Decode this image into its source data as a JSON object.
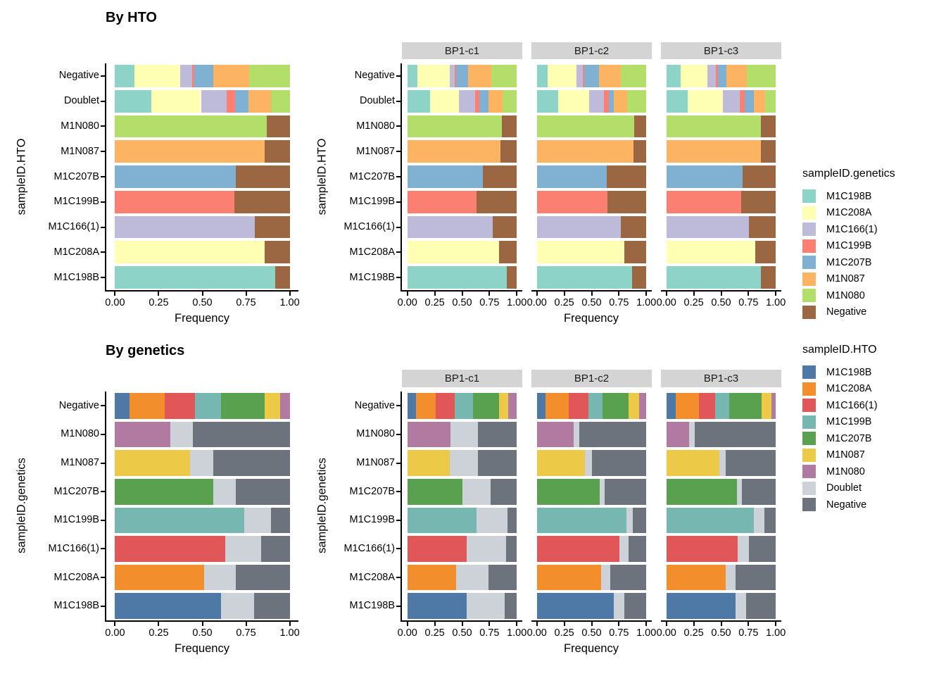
{
  "titles": {
    "top": "By HTO",
    "bottom": "By genetics"
  },
  "axis": {
    "x_label": "Frequency",
    "x_ticks": [
      "0.00",
      "0.25",
      "0.50",
      "0.75",
      "1.00"
    ],
    "y_label_top": "sampleID.HTO",
    "y_label_bottom": "sampleID.genetics"
  },
  "facet_labels": [
    "BP1-c1",
    "BP1-c2",
    "BP1-c3"
  ],
  "legends": [
    {
      "title": "sampleID.genetics",
      "items": [
        {
          "label": "M1C198B",
          "color": "#8dd3c7"
        },
        {
          "label": "M1C208A",
          "color": "#ffffb3"
        },
        {
          "label": "M1C166(1)",
          "color": "#bebada"
        },
        {
          "label": "M1C199B",
          "color": "#fb8072"
        },
        {
          "label": "M1C207B",
          "color": "#80b1d3"
        },
        {
          "label": "M1N087",
          "color": "#fdb462"
        },
        {
          "label": "M1N080",
          "color": "#b3de69"
        },
        {
          "label": "Negative",
          "color": "#9a6742"
        }
      ]
    },
    {
      "title": "sampleID.HTO",
      "items": [
        {
          "label": "M1C198B",
          "color": "#4e79a7"
        },
        {
          "label": "M1C208A",
          "color": "#f28e2b"
        },
        {
          "label": "M1C166(1)",
          "color": "#e15759"
        },
        {
          "label": "M1C199B",
          "color": "#76b7b2"
        },
        {
          "label": "M1C207B",
          "color": "#59a14f"
        },
        {
          "label": "M1N087",
          "color": "#edc948"
        },
        {
          "label": "M1N080",
          "color": "#b07aa1"
        },
        {
          "label": "Doublet",
          "color": "#cdd2d9"
        },
        {
          "label": "Negative",
          "color": "#6d737c"
        }
      ]
    }
  ],
  "chart_data": [
    {
      "id": "by_hto_overall",
      "type": "bar",
      "stacked": true,
      "orientation": "horizontal",
      "title": "By HTO",
      "xlabel": "Frequency",
      "ylabel": "sampleID.HTO",
      "xlim": [
        0,
        1
      ],
      "x_ticks": [
        "0.00",
        "0.25",
        "0.50",
        "0.75",
        "1.00"
      ],
      "legend_title": "sampleID.genetics",
      "stack_series": [
        "M1C198B",
        "M1C208A",
        "M1C166(1)",
        "M1C199B",
        "M1C207B",
        "M1N087",
        "M1N080",
        "Negative"
      ],
      "stack_colors": [
        "#8dd3c7",
        "#ffffb3",
        "#bebada",
        "#fb8072",
        "#80b1d3",
        "#fdb462",
        "#b3de69",
        "#9a6742"
      ],
      "categories": [
        "Negative",
        "Doublet",
        "M1N080",
        "M1N087",
        "M1C207B",
        "M1C199B",
        "M1C166(1)",
        "M1C208A",
        "M1C198B"
      ],
      "rows": [
        [
          0.112,
          0.262,
          0.066,
          0.015,
          0.108,
          0.206,
          0.231,
          0
        ],
        [
          0.207,
          0.285,
          0.149,
          0.045,
          0.077,
          0.129,
          0.108,
          0
        ],
        [
          0,
          0,
          0,
          0,
          0,
          0,
          0.867,
          0.133
        ],
        [
          0,
          0,
          0,
          0,
          0,
          0.855,
          0,
          0.145
        ],
        [
          0,
          0,
          0,
          0,
          0.693,
          0,
          0,
          0.307
        ],
        [
          0,
          0,
          0,
          0.685,
          0,
          0,
          0,
          0.315
        ],
        [
          0,
          0,
          0.802,
          0,
          0,
          0,
          0,
          0.198
        ],
        [
          0,
          0.855,
          0,
          0,
          0,
          0,
          0,
          0.145
        ],
        [
          0.918,
          0,
          0,
          0,
          0,
          0,
          0,
          0.082
        ]
      ]
    },
    {
      "id": "by_hto_facets",
      "type": "bar",
      "stacked": true,
      "orientation": "horizontal",
      "title": "By HTO",
      "xlabel": "Frequency",
      "ylabel": "sampleID.HTO",
      "xlim": [
        0,
        1
      ],
      "x_ticks": [
        "0.00",
        "0.25",
        "0.50",
        "0.75",
        "1.00"
      ],
      "legend_title": "sampleID.genetics",
      "stack_series": [
        "M1C198B",
        "M1C208A",
        "M1C166(1)",
        "M1C199B",
        "M1C207B",
        "M1N087",
        "M1N080",
        "Negative"
      ],
      "stack_colors": [
        "#8dd3c7",
        "#ffffb3",
        "#bebada",
        "#fb8072",
        "#80b1d3",
        "#fdb462",
        "#b3de69",
        "#9a6742"
      ],
      "categories": [
        "Negative",
        "Doublet",
        "M1N080",
        "M1N087",
        "M1C207B",
        "M1C199B",
        "M1C166(1)",
        "M1C208A",
        "M1C198B"
      ],
      "facets": [
        {
          "label": "BP1-c1",
          "rows": [
            [
              0.09,
              0.3,
              0.04,
              0.015,
              0.11,
              0.21,
              0.235,
              0
            ],
            [
              0.21,
              0.26,
              0.15,
              0.04,
              0.08,
              0.13,
              0.13,
              0
            ],
            [
              0,
              0,
              0,
              0,
              0,
              0,
              0.862,
              0.138
            ],
            [
              0,
              0,
              0,
              0,
              0,
              0.85,
              0,
              0.15
            ],
            [
              0,
              0,
              0,
              0,
              0.69,
              0,
              0,
              0.31
            ],
            [
              0,
              0,
              0,
              0.63,
              0,
              0,
              0,
              0.37
            ],
            [
              0,
              0,
              0.78,
              0,
              0,
              0,
              0,
              0.22
            ],
            [
              0,
              0.84,
              0,
              0,
              0,
              0,
              0,
              0.16
            ],
            [
              0.91,
              0,
              0,
              0,
              0,
              0,
              0,
              0.09
            ]
          ]
        },
        {
          "label": "BP1-c2",
          "rows": [
            [
              0.1,
              0.26,
              0.06,
              0.015,
              0.13,
              0.2,
              0.235,
              0
            ],
            [
              0.195,
              0.285,
              0.13,
              0.045,
              0.05,
              0.12,
              0.175,
              0
            ],
            [
              0,
              0,
              0,
              0,
              0,
              0,
              0.89,
              0.11
            ],
            [
              0,
              0,
              0,
              0,
              0,
              0.885,
              0,
              0.115
            ],
            [
              0,
              0,
              0,
              0,
              0.637,
              0,
              0,
              0.363
            ],
            [
              0,
              0,
              0,
              0.645,
              0,
              0,
              0,
              0.355
            ],
            [
              0,
              0,
              0.77,
              0,
              0,
              0,
              0,
              0.23
            ],
            [
              0,
              0.8,
              0,
              0,
              0,
              0,
              0,
              0.2
            ],
            [
              0.868,
              0,
              0,
              0,
              0,
              0,
              0,
              0.132
            ]
          ]
        },
        {
          "label": "BP1-c3",
          "rows": [
            [
              0.132,
              0.245,
              0.078,
              0.017,
              0.078,
              0.185,
              0.265,
              0
            ],
            [
              0.195,
              0.319,
              0.157,
              0.046,
              0.08,
              0.105,
              0.098,
              0
            ],
            [
              0,
              0,
              0,
              0,
              0,
              0,
              0.866,
              0.134
            ],
            [
              0,
              0,
              0,
              0,
              0,
              0.862,
              0,
              0.138
            ],
            [
              0,
              0,
              0,
              0,
              0.698,
              0,
              0,
              0.302
            ],
            [
              0,
              0,
              0,
              0.685,
              0,
              0,
              0,
              0.315
            ],
            [
              0,
              0,
              0.757,
              0,
              0,
              0,
              0,
              0.243
            ],
            [
              0,
              0.81,
              0,
              0,
              0,
              0,
              0,
              0.19
            ],
            [
              0.865,
              0,
              0,
              0,
              0,
              0,
              0,
              0.135
            ]
          ]
        }
      ]
    },
    {
      "id": "by_genetics_overall",
      "type": "bar",
      "stacked": true,
      "orientation": "horizontal",
      "title": "By genetics",
      "xlabel": "Frequency",
      "ylabel": "sampleID.genetics",
      "xlim": [
        0,
        1
      ],
      "x_ticks": [
        "0.00",
        "0.25",
        "0.50",
        "0.75",
        "1.00"
      ],
      "legend_title": "sampleID.HTO",
      "stack_series": [
        "M1C198B",
        "M1C208A",
        "M1C166(1)",
        "M1C199B",
        "M1C207B",
        "M1N087",
        "M1N080",
        "Doublet",
        "Negative"
      ],
      "stack_colors": [
        "#4e79a7",
        "#f28e2b",
        "#e15759",
        "#76b7b2",
        "#59a14f",
        "#edc948",
        "#b07aa1",
        "#cdd2d9",
        "#6d737c"
      ],
      "categories": [
        "Negative",
        "M1N080",
        "M1N087",
        "M1C207B",
        "M1C199B",
        "M1C166(1)",
        "M1C208A",
        "M1C198B"
      ],
      "rows": [
        [
          0.081,
          0.203,
          0.175,
          0.148,
          0.248,
          0.089,
          0.056,
          0,
          0
        ],
        [
          0,
          0,
          0,
          0,
          0,
          0,
          0.315,
          0.13,
          0.555
        ],
        [
          0,
          0,
          0,
          0,
          0,
          0.431,
          0,
          0.131,
          0.438
        ],
        [
          0,
          0,
          0,
          0,
          0.563,
          0,
          0,
          0.13,
          0.307
        ],
        [
          0,
          0,
          0,
          0.738,
          0,
          0,
          0,
          0.153,
          0.109
        ],
        [
          0,
          0,
          0.633,
          0,
          0,
          0,
          0,
          0.202,
          0.165
        ],
        [
          0,
          0.512,
          0,
          0,
          0,
          0,
          0,
          0.181,
          0.307
        ],
        [
          0.606,
          0,
          0,
          0,
          0,
          0,
          0,
          0.192,
          0.202
        ]
      ]
    },
    {
      "id": "by_genetics_facets",
      "type": "bar",
      "stacked": true,
      "orientation": "horizontal",
      "title": "By genetics",
      "xlabel": "Frequency",
      "ylabel": "sampleID.genetics",
      "xlim": [
        0,
        1
      ],
      "x_ticks": [
        "0.00",
        "0.25",
        "0.50",
        "0.75",
        "1.00"
      ],
      "legend_title": "sampleID.HTO",
      "stack_series": [
        "M1C198B",
        "M1C208A",
        "M1C166(1)",
        "M1C199B",
        "M1C207B",
        "M1N087",
        "M1N080",
        "Doublet",
        "Negative"
      ],
      "stack_colors": [
        "#4e79a7",
        "#f28e2b",
        "#e15759",
        "#76b7b2",
        "#59a14f",
        "#edc948",
        "#b07aa1",
        "#cdd2d9",
        "#6d737c"
      ],
      "categories": [
        "Negative",
        "M1N080",
        "M1N087",
        "M1C207B",
        "M1C199B",
        "M1C166(1)",
        "M1C208A",
        "M1C198B"
      ],
      "facets": [
        {
          "label": "BP1-c1",
          "rows": [
            [
              0.08,
              0.178,
              0.172,
              0.172,
              0.237,
              0.08,
              0.081,
              0,
              0
            ],
            [
              0,
              0,
              0,
              0,
              0,
              0,
              0.396,
              0.249,
              0.355
            ],
            [
              0,
              0,
              0,
              0,
              0,
              0.387,
              0,
              0.258,
              0.355
            ],
            [
              0,
              0,
              0,
              0,
              0.505,
              0,
              0,
              0.258,
              0.237
            ],
            [
              0,
              0,
              0,
              0.634,
              0,
              0,
              0,
              0.28,
              0.086
            ],
            [
              0,
              0,
              0.544,
              0,
              0,
              0,
              0,
              0.36,
              0.096
            ],
            [
              0,
              0.445,
              0,
              0,
              0,
              0,
              0,
              0.297,
              0.258
            ],
            [
              0.544,
              0,
              0,
              0,
              0,
              0,
              0,
              0.344,
              0.112
            ]
          ]
        },
        {
          "label": "BP1-c2",
          "rows": [
            [
              0.08,
              0.21,
              0.183,
              0.129,
              0.237,
              0.096,
              0.065,
              0,
              0
            ],
            [
              0,
              0,
              0,
              0,
              0,
              0,
              0.333,
              0.054,
              0.613
            ],
            [
              0,
              0,
              0,
              0,
              0,
              0.441,
              0,
              0.064,
              0.495
            ],
            [
              0,
              0,
              0,
              0,
              0.574,
              0,
              0,
              0.043,
              0.383
            ],
            [
              0,
              0,
              0,
              0.817,
              0,
              0,
              0,
              0.058,
              0.125
            ],
            [
              0,
              0,
              0.753,
              0,
              0,
              0,
              0,
              0.086,
              0.161
            ],
            [
              0,
              0.59,
              0,
              0,
              0,
              0,
              0,
              0.082,
              0.328
            ],
            [
              0.7,
              0,
              0,
              0,
              0,
              0,
              0,
              0.1,
              0.2
            ]
          ]
        },
        {
          "label": "BP1-c3",
          "rows": [
            [
              0.088,
              0.212,
              0.147,
              0.126,
              0.294,
              0.094,
              0.039,
              0,
              0
            ],
            [
              0,
              0,
              0,
              0,
              0,
              0,
              0.21,
              0.052,
              0.738
            ],
            [
              0,
              0,
              0,
              0,
              0,
              0.482,
              0,
              0.063,
              0.455
            ],
            [
              0,
              0,
              0,
              0,
              0.644,
              0,
              0,
              0.048,
              0.308
            ],
            [
              0,
              0,
              0,
              0.8,
              0,
              0,
              0,
              0.098,
              0.102
            ],
            [
              0,
              0,
              0.65,
              0,
              0,
              0,
              0,
              0.105,
              0.245
            ],
            [
              0,
              0.54,
              0,
              0,
              0,
              0,
              0,
              0.095,
              0.365
            ],
            [
              0.63,
              0,
              0,
              0,
              0,
              0,
              0,
              0.1,
              0.27
            ]
          ]
        }
      ]
    }
  ]
}
